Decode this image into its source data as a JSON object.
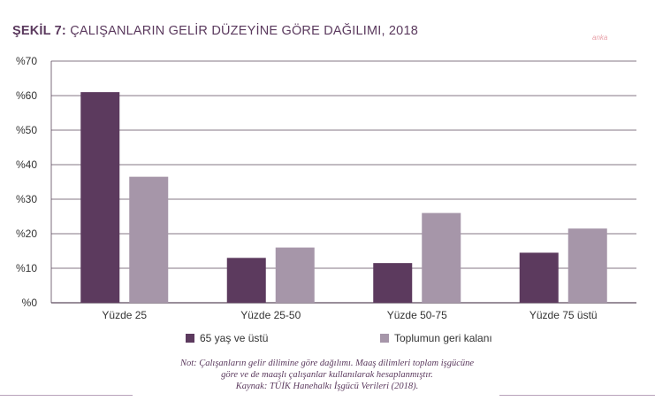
{
  "title": {
    "prefix": "ŞEKİL 7:",
    "text": "ÇALIŞANLARIN GELİR DÜZEYİNE GÖRE DAĞILIMI, 2018"
  },
  "watermark": "anka",
  "colors": {
    "series1": "#5c3a5e",
    "series2": "#a696a9",
    "grid": "#5c4a5e",
    "axis_text": "#333333"
  },
  "chart_data": {
    "type": "bar",
    "title": "ŞEKİL 7: ÇALIŞANLARIN GELİR DÜZEYİNE GÖRE DAĞILIMI, 2018",
    "categories": [
      "Yüzde 25",
      "Yüzde 25-50",
      "Yüzde 50-75",
      "Yüzde 75 üstü"
    ],
    "series": [
      {
        "name": "65 yaş ve üstü",
        "values": [
          61,
          13,
          11.5,
          14.5
        ]
      },
      {
        "name": "Toplumun geri kalanı",
        "values": [
          36.5,
          16,
          26,
          21.5
        ]
      }
    ],
    "yticks": [
      0,
      10,
      20,
      30,
      40,
      50,
      60,
      70
    ],
    "ytick_labels": [
      "%0",
      "%10",
      "%20",
      "%30",
      "%40",
      "%50",
      "%60",
      "%70"
    ],
    "ylim": [
      0,
      70
    ],
    "xlabel": "",
    "ylabel": "",
    "grid": true,
    "legend": "bottom"
  },
  "legend": [
    {
      "label": "65 yaş ve üstü"
    },
    {
      "label": "Toplumun geri kalanı"
    }
  ],
  "note": {
    "line1": "Not: Çalışanların gelir dilimine göre dağılımı. Maaş dilimleri toplam işgücüne",
    "line2": "göre ve de maaşlı çalışanlar kullanılarak hesaplanmıştır.",
    "line3": "Kaynak: TÜİK Hanehalkı İşgücü Verileri (2018)."
  }
}
